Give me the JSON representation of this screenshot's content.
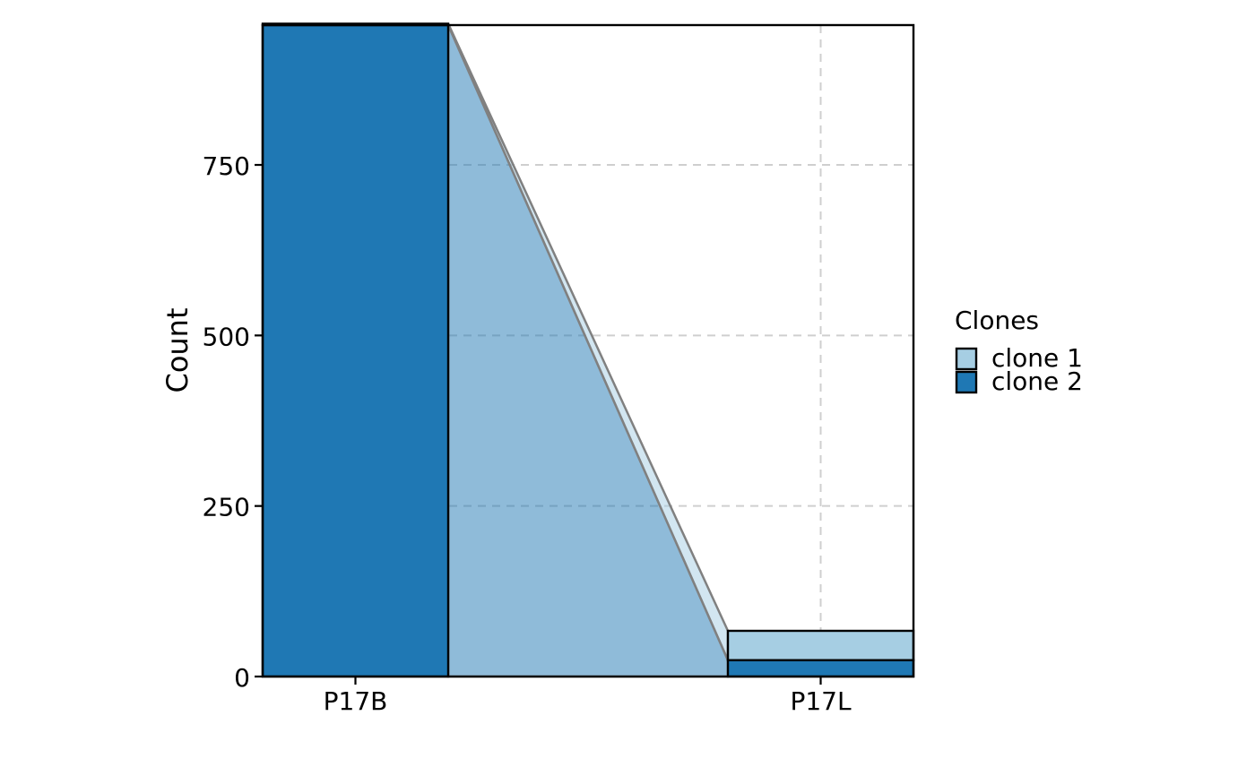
{
  "chart_data": {
    "type": "area",
    "categories": [
      "P17B",
      "P17L"
    ],
    "series": [
      {
        "name": "clone 1",
        "values": [
          2,
          43
        ],
        "color": "#A6CEE3"
      },
      {
        "name": "clone 2",
        "values": [
          955,
          24
        ],
        "color": "#1F78B4"
      }
    ],
    "ylabel": "Count",
    "yticks": [
      0,
      250,
      500,
      750
    ],
    "ylim": [
      0,
      957
    ],
    "grid": true,
    "legend": {
      "title": "Clones",
      "position": "right"
    }
  }
}
